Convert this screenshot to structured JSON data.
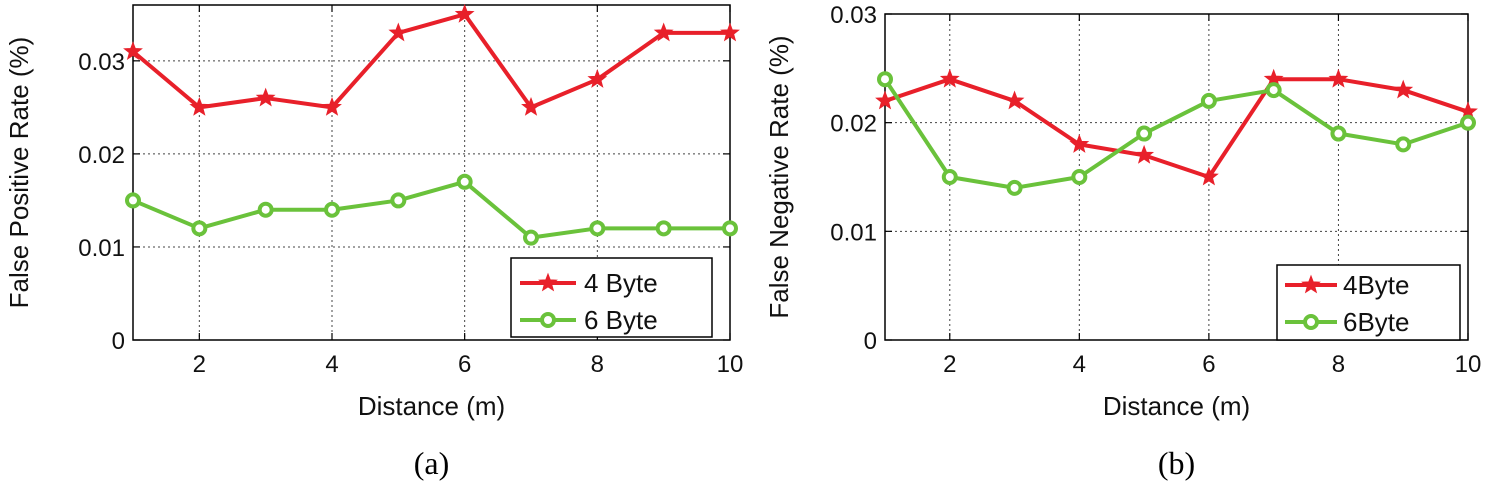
{
  "chart_data": [
    {
      "type": "line",
      "caption": "(a)",
      "xlabel": "Distance (m)",
      "ylabel": "False Positive Rate (%)",
      "xlim": [
        1,
        10
      ],
      "ylim": [
        0,
        0.036
      ],
      "xticks": [
        2,
        4,
        6,
        8,
        10
      ],
      "xtick_labels": [
        "2",
        "4",
        "6",
        "8",
        "10"
      ],
      "yticks": [
        0,
        0.01,
        0.02,
        0.03
      ],
      "ytick_labels": [
        "0",
        "0.01",
        "0.02",
        "0.03"
      ],
      "grid": true,
      "legend_position": "bottom-right",
      "x": [
        1,
        2,
        3,
        4,
        5,
        6,
        7,
        8,
        9,
        10
      ],
      "series": [
        {
          "name": "4 Byte",
          "color": "#e8202a",
          "marker": "star",
          "values": [
            0.031,
            0.025,
            0.026,
            0.025,
            0.033,
            0.035,
            0.025,
            0.028,
            0.033,
            0.033
          ]
        },
        {
          "name": "6 Byte",
          "color": "#6ac23b",
          "marker": "circle",
          "values": [
            0.015,
            0.012,
            0.014,
            0.014,
            0.015,
            0.017,
            0.011,
            0.012,
            0.012,
            0.012
          ]
        }
      ]
    },
    {
      "type": "line",
      "caption": "(b)",
      "xlabel": "Distance (m)",
      "ylabel": "False Negative Rate (%)",
      "xlim": [
        1,
        10
      ],
      "ylim": [
        0,
        0.03
      ],
      "xticks": [
        2,
        4,
        6,
        8,
        10
      ],
      "xtick_labels": [
        "2",
        "4",
        "6",
        "8",
        "10"
      ],
      "yticks": [
        0,
        0.01,
        0.02,
        0.03
      ],
      "ytick_labels": [
        "0",
        "0.01",
        "0.02",
        "0.03"
      ],
      "grid": true,
      "legend_position": "bottom-right",
      "x": [
        1,
        2,
        3,
        4,
        5,
        6,
        7,
        8,
        9,
        10
      ],
      "series": [
        {
          "name": "4Byte",
          "color": "#e8202a",
          "marker": "star",
          "values": [
            0.022,
            0.024,
            0.022,
            0.018,
            0.017,
            0.015,
            0.024,
            0.024,
            0.023,
            0.021
          ]
        },
        {
          "name": "6Byte",
          "color": "#6ac23b",
          "marker": "circle",
          "values": [
            0.024,
            0.015,
            0.014,
            0.015,
            0.019,
            0.022,
            0.023,
            0.019,
            0.018,
            0.02
          ]
        }
      ]
    }
  ]
}
